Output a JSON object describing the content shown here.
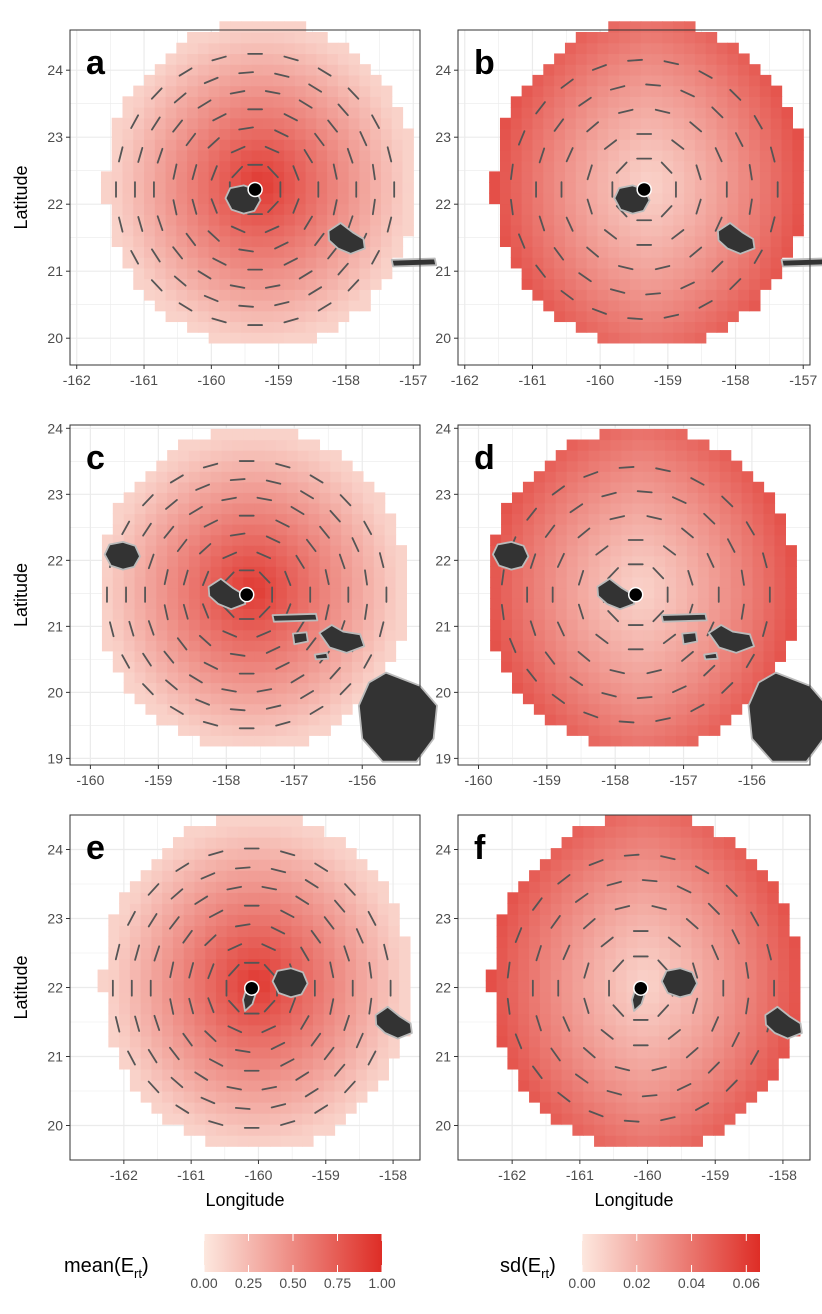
{
  "chart_data": [
    {
      "id": "a",
      "type": "heatmap",
      "stat": "mean",
      "center": [
        -159.35,
        22.22
      ],
      "radius": 2.45,
      "xlim": [
        -162.1,
        -156.9
      ],
      "ylim": [
        19.6,
        24.6
      ],
      "xticks": [
        -162,
        -161,
        -160,
        -159,
        -158,
        -157
      ],
      "yticks": [
        20,
        21,
        22,
        23,
        24
      ],
      "xlabel": "",
      "ylabel": "Latitude",
      "islands": [
        "kauai",
        "oahu",
        "molokai"
      ]
    },
    {
      "id": "b",
      "type": "heatmap",
      "stat": "sd",
      "center": [
        -159.35,
        22.22
      ],
      "radius": 2.45,
      "xlim": [
        -162.1,
        -156.9
      ],
      "ylim": [
        19.6,
        24.6
      ],
      "xticks": [
        -162,
        -161,
        -160,
        -159,
        -158,
        -157
      ],
      "yticks": [
        20,
        21,
        22,
        23,
        24
      ],
      "xlabel": "",
      "ylabel": "",
      "islands": [
        "kauai",
        "oahu",
        "molokai"
      ]
    },
    {
      "id": "c",
      "type": "heatmap",
      "stat": "mean",
      "center": [
        -157.7,
        21.48
      ],
      "radius": 2.45,
      "xlim": [
        -160.3,
        -155.15
      ],
      "ylim": [
        18.9,
        24.05
      ],
      "xticks": [
        -160,
        -159,
        -158,
        -157,
        -156
      ],
      "yticks": [
        19,
        20,
        21,
        22,
        23,
        24
      ],
      "xlabel": "",
      "ylabel": "Latitude",
      "islands": [
        "kauai",
        "oahu",
        "molokai",
        "lanai",
        "maui",
        "kahoolawe",
        "hawaii"
      ]
    },
    {
      "id": "d",
      "type": "heatmap",
      "stat": "sd",
      "center": [
        -157.7,
        21.48
      ],
      "radius": 2.45,
      "xlim": [
        -160.3,
        -155.15
      ],
      "ylim": [
        18.9,
        24.05
      ],
      "xticks": [
        -160,
        -159,
        -158,
        -157,
        -156
      ],
      "yticks": [
        19,
        20,
        21,
        22,
        23,
        24
      ],
      "xlabel": "",
      "ylabel": "",
      "islands": [
        "kauai",
        "oahu",
        "molokai",
        "lanai",
        "maui",
        "kahoolawe",
        "hawaii"
      ]
    },
    {
      "id": "e",
      "type": "heatmap",
      "stat": "mean",
      "center": [
        -160.1,
        21.99
      ],
      "radius": 2.45,
      "xlim": [
        -162.8,
        -157.6
      ],
      "ylim": [
        19.5,
        24.5
      ],
      "xticks": [
        -162,
        -161,
        -160,
        -159,
        -158
      ],
      "yticks": [
        20,
        21,
        22,
        23,
        24
      ],
      "xlabel": "Longitude",
      "ylabel": "Latitude",
      "islands": [
        "niihau",
        "kauai",
        "oahu"
      ]
    },
    {
      "id": "f",
      "type": "heatmap",
      "stat": "sd",
      "center": [
        -160.1,
        21.99
      ],
      "radius": 2.45,
      "xlim": [
        -162.8,
        -157.6
      ],
      "ylim": [
        19.5,
        24.5
      ],
      "xticks": [
        -162,
        -161,
        -160,
        -159,
        -158
      ],
      "yticks": [
        20,
        21,
        22,
        23,
        24
      ],
      "xlabel": "Longitude",
      "ylabel": "",
      "islands": [
        "niihau",
        "kauai",
        "oahu"
      ]
    }
  ],
  "legend_mean": {
    "title": "mean(E",
    "sub": "rt",
    "close": ")",
    "range": [
      0,
      1
    ],
    "ticks": [
      "0.00",
      "0.25",
      "0.50",
      "0.75",
      "1.00"
    ],
    "tick_values": [
      0,
      0.25,
      0.5,
      0.75,
      1.0
    ]
  },
  "legend_sd": {
    "title": "sd(E",
    "sub": "rt",
    "close": ")",
    "range": [
      0,
      0.065
    ],
    "ticks": [
      "0.00",
      "0.02",
      "0.04",
      "0.06"
    ],
    "tick_values": [
      0,
      0.02,
      0.04,
      0.06
    ]
  },
  "colors": {
    "low": "#fde8df",
    "high": "#de2d26",
    "island": "#333333",
    "island_edge": "#bbbbbb",
    "grid": "#ebebeb",
    "dash": "#555555"
  }
}
